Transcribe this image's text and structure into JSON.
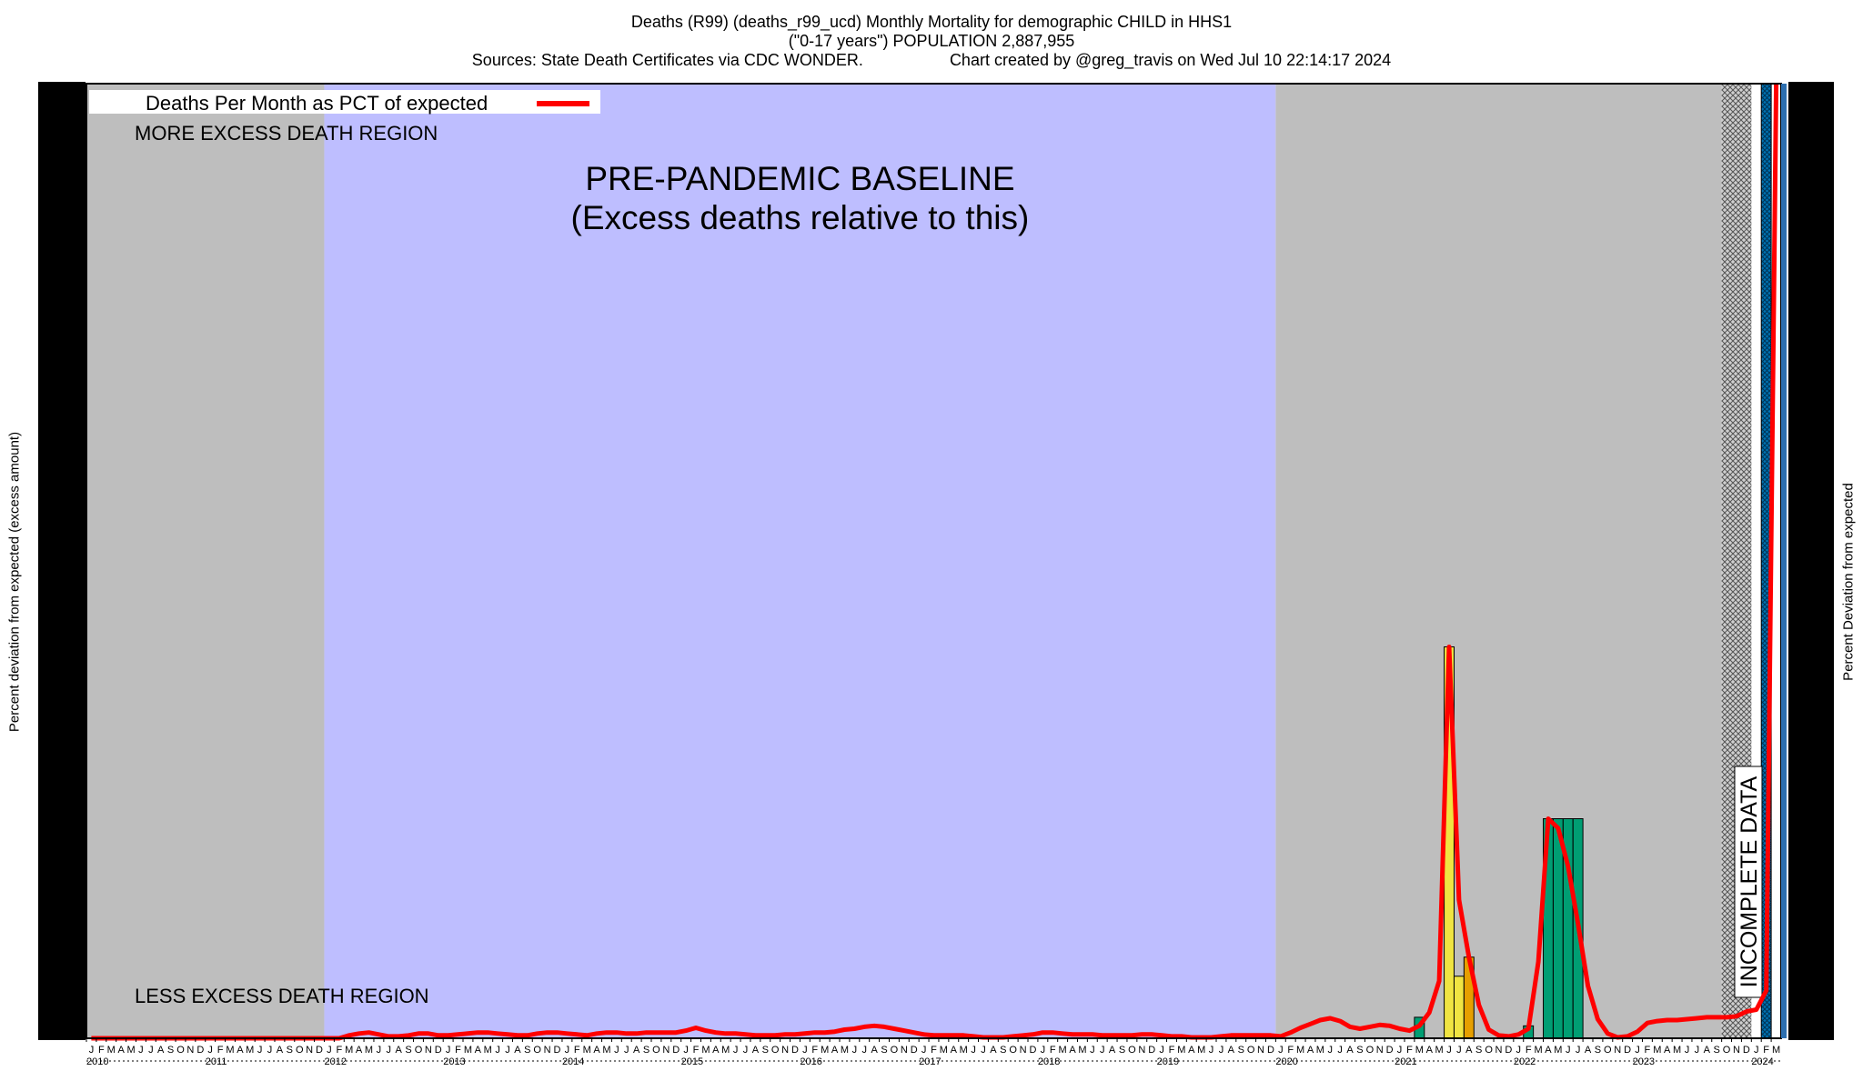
{
  "header": {
    "line1": "Deaths (R99) (deaths_r99_ucd) Monthly Mortality for demographic CHILD in HHS1",
    "line2": "(\"0-17 years\") POPULATION 2,887,955",
    "sources": "Sources: State Death Certificates via CDC WONDER.",
    "credit": "Chart created by @greg_travis on Wed Jul 10 22:14:17 2024"
  },
  "chart_data": {
    "type": "line",
    "title": "Deaths (R99) (deaths_r99_ucd) Monthly Mortality for demographic CHILD in HHS1",
    "ylabel_left": "Percent deviation from expected (excess amount)",
    "ylabel_right": "Percent Deviation from expected",
    "legend": {
      "label": "Deaths Per Month as PCT of expected",
      "color": "#ff0000",
      "position": "top-left"
    },
    "x_start": "2010-01",
    "x_end": "2024-03",
    "month_initials": [
      "J",
      "F",
      "M",
      "A",
      "M",
      "J",
      "J",
      "A",
      "S",
      "O",
      "N",
      "D"
    ],
    "years": [
      "2010",
      "2011",
      "2012",
      "2013",
      "2014",
      "2015",
      "2016",
      "2017",
      "2018",
      "2019",
      "2020",
      "2021",
      "2022",
      "2023",
      "2024"
    ],
    "regions": [
      {
        "label": "",
        "start": "2010-01",
        "end": "2012-01",
        "color": "#bebebe"
      },
      {
        "label": "PRE-PANDEMIC BASELINE",
        "sublabel": "(Excess deaths relative to this)",
        "start": "2012-01",
        "end": "2020-01",
        "color": "#bebeff"
      },
      {
        "label": "",
        "start": "2020-01",
        "end": "2023-10",
        "color": "#bebebe"
      },
      {
        "label": "INCOMPLETE DATA",
        "start": "2023-10",
        "end": "2024-01",
        "color": "#cccccc",
        "hatched": true
      }
    ],
    "annotations": {
      "more": "MORE EXCESS DEATH REGION",
      "less": "LESS EXCESS DEATH REGION"
    },
    "series": [
      {
        "name": "Deaths Per Month as PCT of expected",
        "color": "#ff0000",
        "values": [
          0,
          0,
          0,
          0,
          0,
          0,
          0,
          0,
          0,
          0,
          0,
          0,
          0,
          0,
          0,
          0,
          0,
          0,
          0,
          0,
          0,
          0,
          0,
          0,
          0,
          0,
          0.3,
          0.5,
          0.6,
          0.4,
          0.2,
          0.2,
          0.3,
          0.5,
          0.5,
          0.3,
          0.3,
          0.4,
          0.5,
          0.6,
          0.6,
          0.5,
          0.4,
          0.3,
          0.3,
          0.5,
          0.6,
          0.6,
          0.5,
          0.4,
          0.3,
          0.5,
          0.6,
          0.6,
          0.5,
          0.5,
          0.6,
          0.6,
          0.6,
          0.6,
          0.8,
          1.1,
          0.8,
          0.6,
          0.5,
          0.5,
          0.4,
          0.3,
          0.3,
          0.3,
          0.4,
          0.4,
          0.5,
          0.6,
          0.6,
          0.7,
          0.9,
          1.0,
          1.2,
          1.3,
          1.2,
          1.0,
          0.8,
          0.6,
          0.4,
          0.3,
          0.3,
          0.3,
          0.3,
          0.2,
          0.1,
          0.1,
          0.1,
          0.2,
          0.3,
          0.4,
          0.6,
          0.6,
          0.5,
          0.4,
          0.4,
          0.4,
          0.3,
          0.3,
          0.3,
          0.3,
          0.4,
          0.4,
          0.3,
          0.2,
          0.2,
          0.1,
          0.1,
          0.1,
          0.2,
          0.3,
          0.3,
          0.3,
          0.3,
          0.3,
          0.2,
          0.6,
          1.1,
          1.5,
          1.9,
          2.1,
          1.8,
          1.2,
          1.0,
          1.2,
          1.4,
          1.3,
          1.0,
          0.8,
          1.3,
          2.7,
          6.0,
          41.0,
          14.5,
          8.5,
          3.5,
          0.9,
          0.3,
          0.2,
          0.4,
          1.0,
          8.0,
          23.0,
          22.0,
          18.0,
          12.0,
          5.5,
          2.0,
          0.5,
          0.1,
          0.2,
          0.7,
          1.6,
          1.8,
          1.9,
          1.9,
          2.0,
          2.1,
          2.2,
          2.2,
          2.2,
          2.3,
          2.8,
          3.0,
          5.0,
          100
        ]
      }
    ],
    "bars": [
      {
        "month": "2021-03",
        "value": 2.2,
        "color": "#009e73"
      },
      {
        "month": "2021-06",
        "value": 41.0,
        "color": "#f0e442"
      },
      {
        "month": "2021-07",
        "value": 6.5,
        "color": "#f0e442"
      },
      {
        "month": "2021-08",
        "value": 8.5,
        "color": "#e69f00"
      },
      {
        "month": "2022-02",
        "value": 1.3,
        "color": "#009e73"
      },
      {
        "month": "2022-04",
        "value": 23.0,
        "color": "#009e73"
      },
      {
        "month": "2022-05",
        "value": 23.0,
        "color": "#009e73"
      },
      {
        "month": "2022-06",
        "value": 23.0,
        "color": "#009e73"
      },
      {
        "month": "2022-07",
        "value": 23.0,
        "color": "#009e73"
      },
      {
        "month": "2024-02",
        "value": 100,
        "color": "#0072b2",
        "hatched": true
      }
    ],
    "ylim": [
      0,
      100
    ],
    "grid": false
  }
}
